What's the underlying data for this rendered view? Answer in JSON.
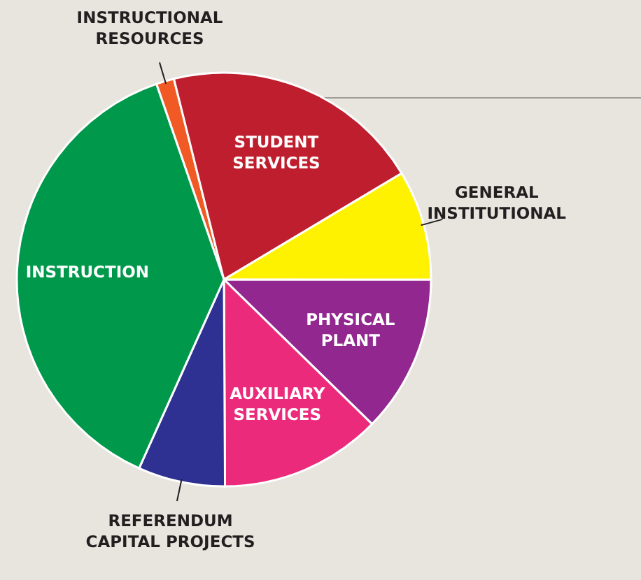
{
  "chart_data": {
    "type": "pie",
    "categories": [
      "INSTRUCTIONAL RESOURCES",
      "STUDENT SERVICES",
      "GENERAL INSTITUTIONAL",
      "PHYSICAL PLANT",
      "AUXILIARY SERVICES",
      "REFERENDUM CAPITAL PROJECTS",
      "INSTRUCTION"
    ],
    "values": [
      1.4,
      20.3,
      8.6,
      12.3,
      12.6,
      6.8,
      38
    ],
    "colors": [
      "#f15a24",
      "#be1e2d",
      "#fff200",
      "#92278f",
      "#ec2a7b",
      "#2e3192",
      "#00994c"
    ]
  }
}
